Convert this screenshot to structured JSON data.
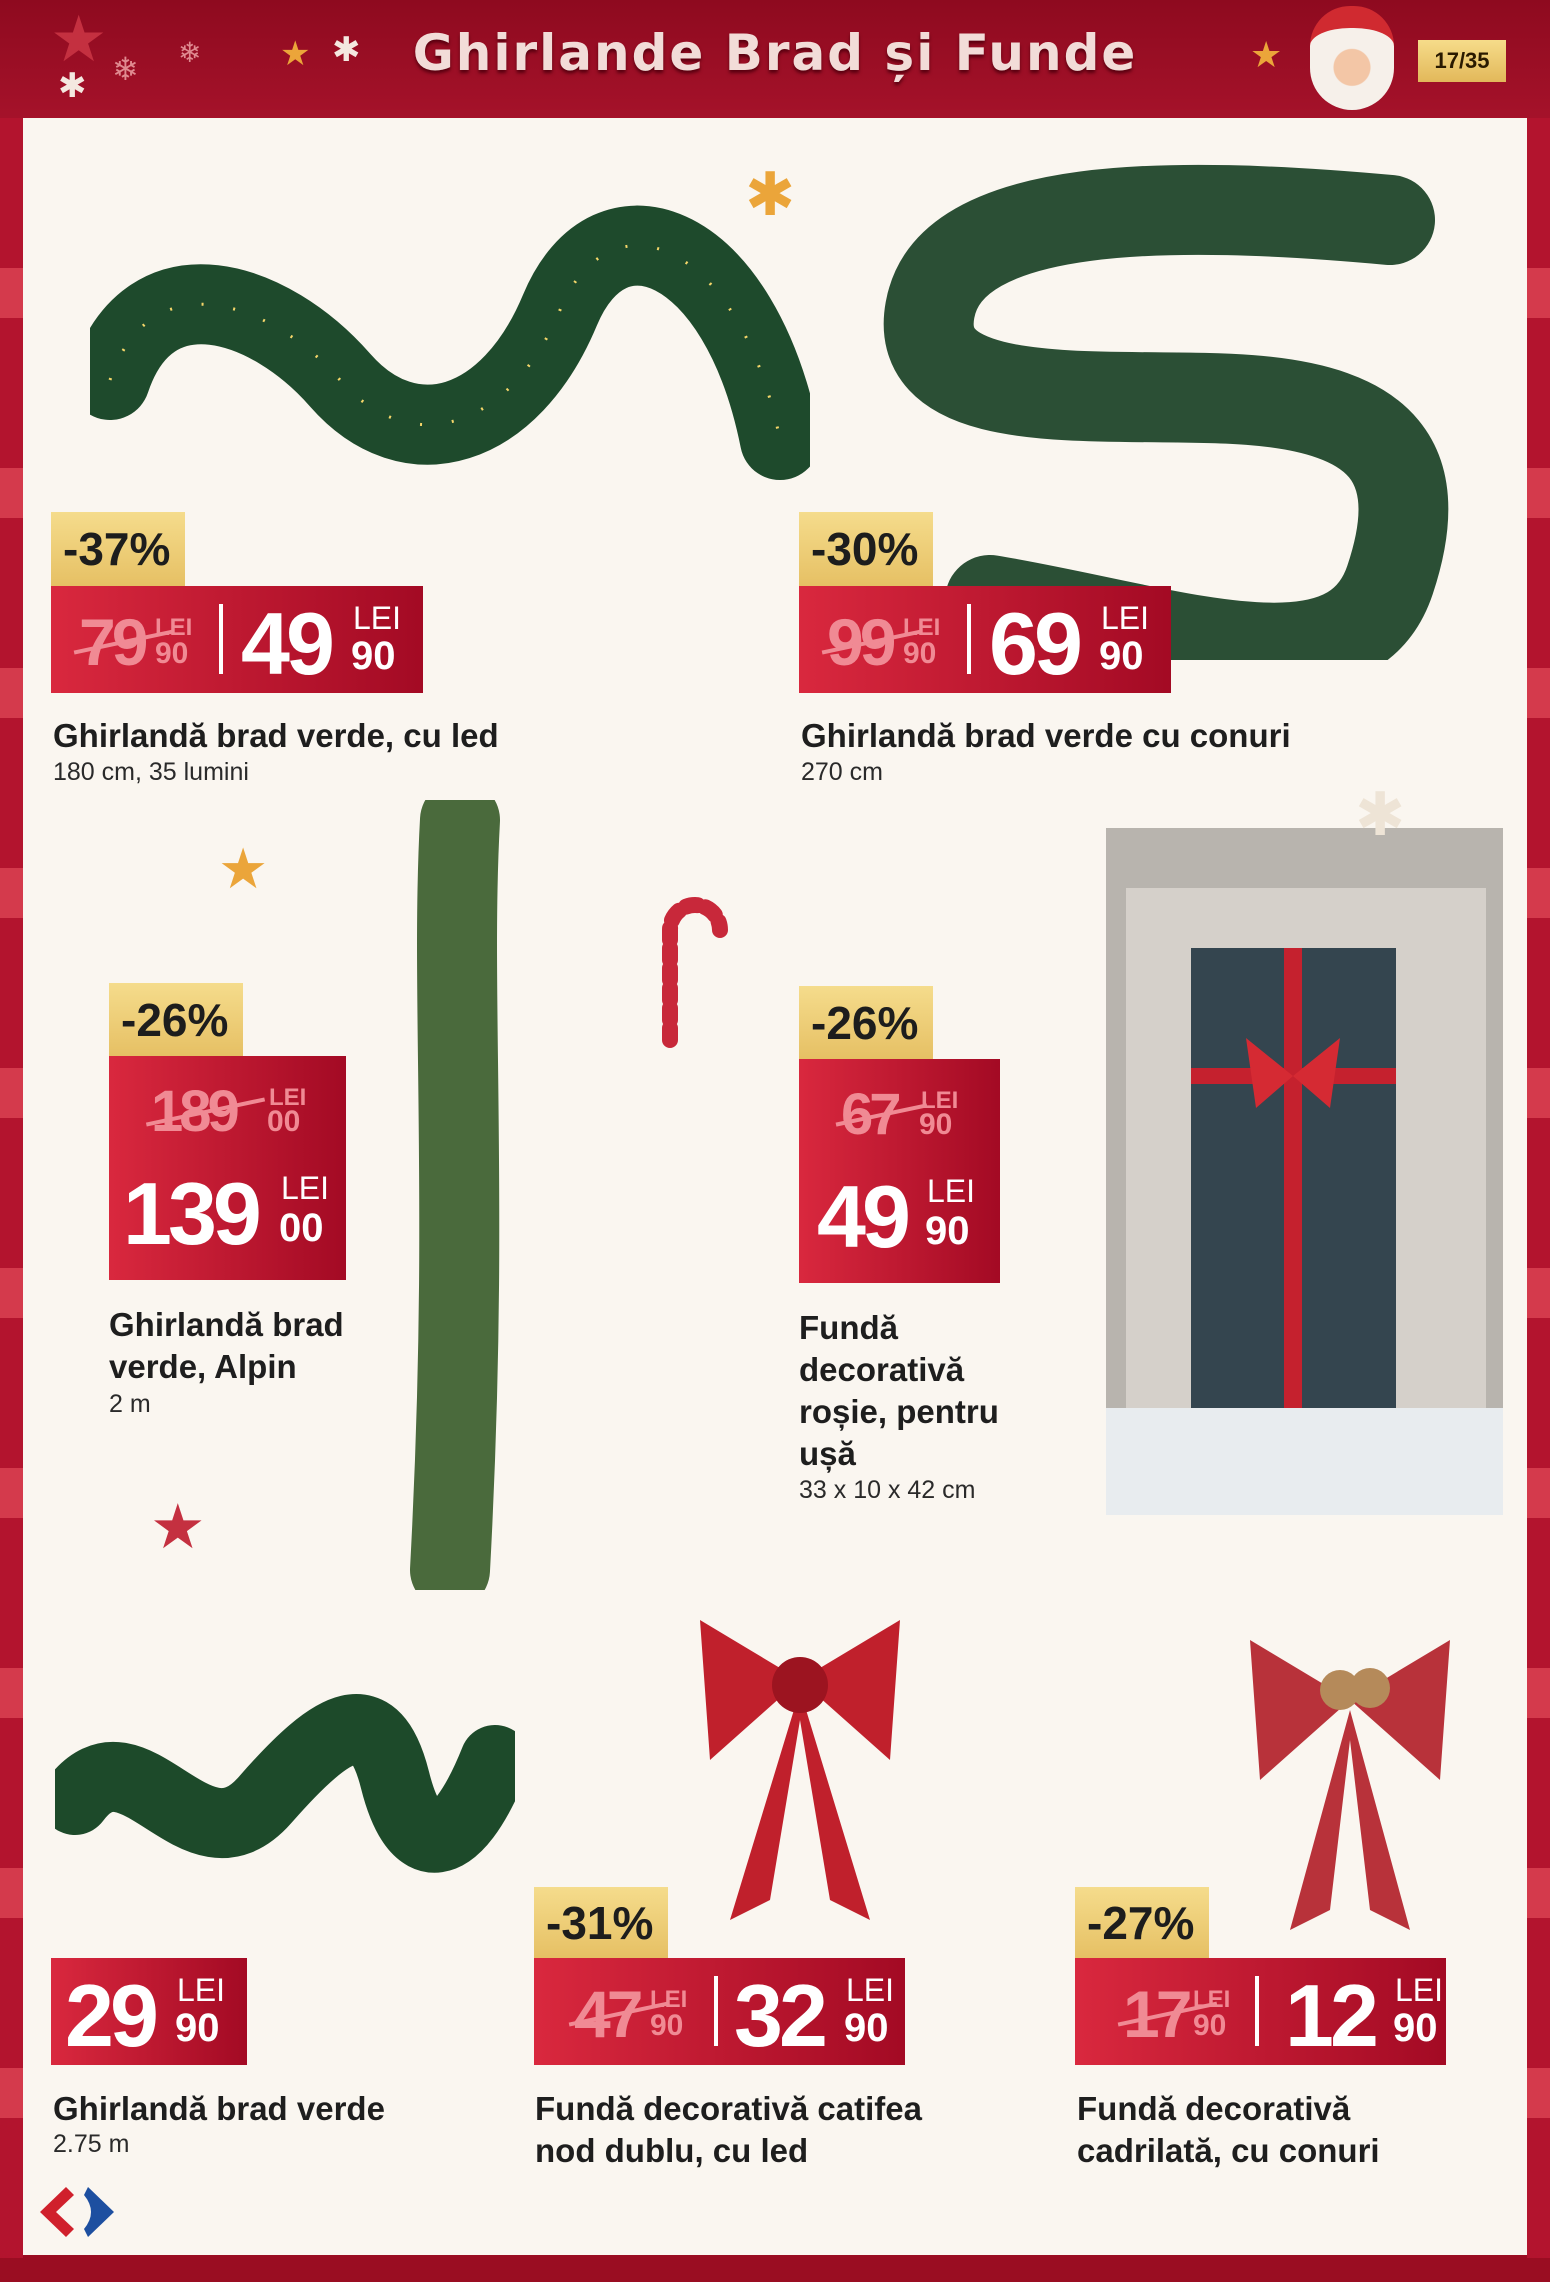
{
  "header": {
    "title": "Ghirlande Brad și Funde",
    "page": "17/35"
  },
  "colors": {
    "brand_red": "#a5122a",
    "price_red": "#d9283e",
    "badge_gold": "#f5dc8c",
    "background": "#faf6f0"
  },
  "products": [
    {
      "name": "Ghirlandă brad verde, cu led",
      "sub": "180 cm, 35 lumini",
      "discount": "-37%",
      "old_int": "79",
      "old_cents": "90",
      "new_int": "49",
      "new_cents": "90",
      "currency": "LEI"
    },
    {
      "name": "Ghirlandă brad verde cu conuri",
      "sub": "270 cm",
      "discount": "-30%",
      "old_int": "99",
      "old_cents": "90",
      "new_int": "69",
      "new_cents": "90",
      "currency": "LEI"
    },
    {
      "name_lines": [
        "Ghirlandă brad",
        "verde, Alpin"
      ],
      "sub": "2 m",
      "discount": "-26%",
      "old_int": "189",
      "old_cents": "00",
      "new_int": "139",
      "new_cents": "00",
      "currency": "LEI"
    },
    {
      "name_lines": [
        "Fundă",
        "decorativă",
        "roșie, pentru",
        "ușă"
      ],
      "sub": "33 x 10 x 42 cm",
      "discount": "-26%",
      "old_int": "67",
      "old_cents": "90",
      "new_int": "49",
      "new_cents": "90",
      "currency": "LEI"
    },
    {
      "name": "Ghirlandă brad verde",
      "sub": "2.75 m",
      "new_int": "29",
      "new_cents": "90",
      "currency": "LEI"
    },
    {
      "name_lines": [
        "Fundă decorativă catifea",
        "nod dublu, cu led"
      ],
      "discount": "-31%",
      "old_int": "47",
      "old_cents": "90",
      "new_int": "32",
      "new_cents": "90",
      "currency": "LEI"
    },
    {
      "name_lines": [
        "Fundă decorativă",
        "cadrilată, cu conuri"
      ],
      "discount": "-27%",
      "old_int": "17",
      "old_cents": "90",
      "new_int": "12",
      "new_cents": "90",
      "currency": "LEI"
    }
  ],
  "icons": {
    "logo": "carrefour-logo",
    "santa": "santa-icon",
    "star": "star-icon",
    "snowflake": "snowflake-icon"
  }
}
